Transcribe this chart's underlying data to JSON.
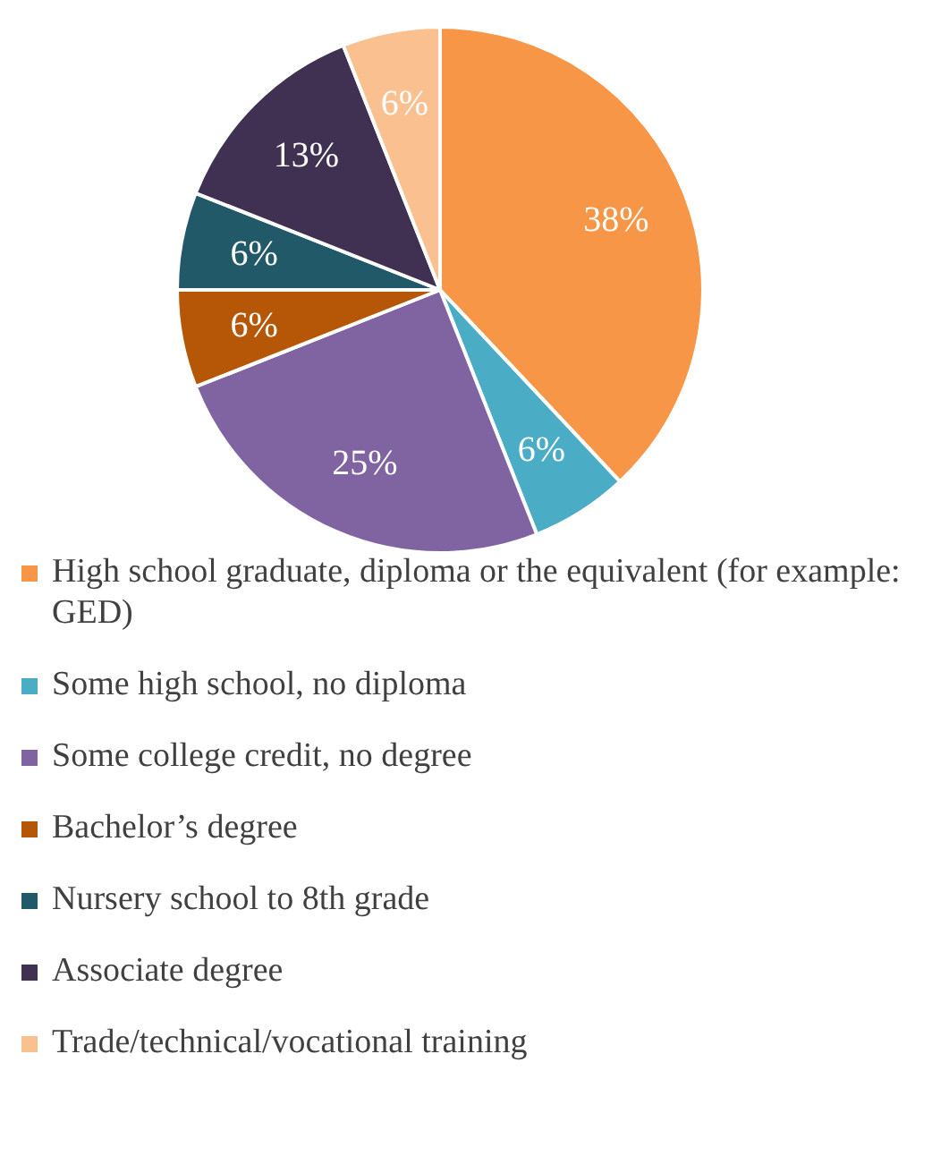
{
  "chart_data": {
    "type": "pie",
    "categories": [
      "High school graduate, diploma or the equivalent (for example: GED)",
      "Some high school, no diploma",
      "Some college credit, no degree",
      "Bachelor’s degree",
      "Nursery school to 8th grade",
      "Associate degree",
      "Trade/technical/vocational training"
    ],
    "values": [
      38,
      6,
      25,
      6,
      6,
      13,
      6
    ],
    "colors": [
      "#f79646",
      "#4bacc6",
      "#8064a2",
      "#b65708",
      "#215968",
      "#403152",
      "#fac090"
    ],
    "value_labels": [
      "38%",
      "6%",
      "25%",
      "6%",
      "6%",
      "13%",
      "6%"
    ],
    "legend": "bottom"
  }
}
